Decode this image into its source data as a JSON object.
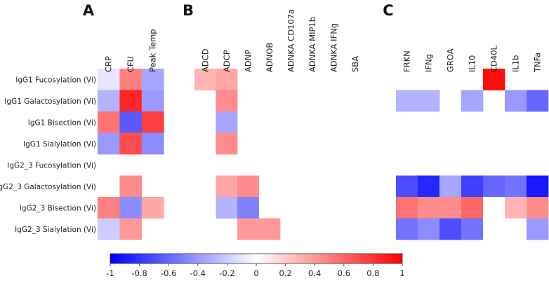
{
  "chart_data": {
    "type": "heatmap",
    "colormap": {
      "min": -1,
      "max": 1,
      "low_color": "#0000ff",
      "mid_color": "#ffffff",
      "high_color": "#ff0000"
    },
    "rows": [
      "IgG1 Fucosylation (Vi)",
      "IgG1 Galactosylation (Vi)",
      "IgG1 Bisection (Vi)",
      "IgG1 Sialylation (Vi)",
      "IgG2_3 Fucosylation (Vi)",
      "IgG2_3 Galactosylation (Vi)",
      "IgG2_3 Bisection (Vi)",
      "IgG2_3 Sialylation (Vi)"
    ],
    "panels": [
      {
        "label": "A",
        "columns": [
          "CRP",
          "CFU",
          "Peak Temp"
        ],
        "values": [
          [
            -0.1,
            0.5,
            -0.35
          ],
          [
            -0.3,
            0.85,
            -0.4
          ],
          [
            0.55,
            -0.65,
            0.75
          ],
          [
            -0.4,
            0.7,
            -0.45
          ],
          [
            null,
            null,
            null
          ],
          [
            null,
            0.45,
            null
          ],
          [
            0.5,
            -0.45,
            0.35
          ],
          [
            -0.2,
            0.4,
            null
          ]
        ]
      },
      {
        "label": "B",
        "columns": [
          "ADCD",
          "ADCP",
          "ADNP",
          "ADNOB",
          "ADNKA CD107a",
          "ADNKA MIP1b",
          "ADNKA IFNg",
          "SBA"
        ],
        "values": [
          [
            0.3,
            0.35,
            null,
            null,
            null,
            null,
            null,
            null
          ],
          [
            null,
            0.45,
            null,
            null,
            null,
            null,
            null,
            null
          ],
          [
            null,
            -0.35,
            null,
            null,
            null,
            null,
            null,
            null
          ],
          [
            null,
            0.45,
            null,
            null,
            null,
            null,
            null,
            null
          ],
          [
            null,
            null,
            null,
            null,
            null,
            null,
            null,
            null
          ],
          [
            null,
            0.35,
            0.45,
            null,
            null,
            null,
            null,
            null
          ],
          [
            null,
            -0.3,
            -0.5,
            null,
            null,
            null,
            null,
            null
          ],
          [
            null,
            null,
            0.4,
            0.4,
            null,
            null,
            null,
            null
          ]
        ]
      },
      {
        "label": "C",
        "columns": [
          "FRKN",
          "IFNg",
          "GROA",
          "IL10",
          "CD40L",
          "IL1b",
          "TNFa"
        ],
        "values": [
          [
            null,
            null,
            null,
            null,
            0.95,
            null,
            null
          ],
          [
            -0.3,
            -0.3,
            null,
            -0.35,
            null,
            -0.4,
            -0.6
          ],
          [
            null,
            null,
            null,
            null,
            null,
            null,
            null
          ],
          [
            null,
            null,
            null,
            null,
            null,
            null,
            null
          ],
          [
            null,
            null,
            null,
            null,
            null,
            null,
            null
          ],
          [
            -0.7,
            -0.85,
            -0.35,
            -0.75,
            -0.6,
            -0.55,
            -0.9
          ],
          [
            0.55,
            0.45,
            0.45,
            0.6,
            0.0,
            0.3,
            0.45
          ],
          [
            -0.55,
            -0.45,
            -0.7,
            -0.55,
            0.0,
            0.0,
            -0.4
          ]
        ]
      }
    ],
    "colorbar": {
      "ticks": [
        "-1",
        "-0.8",
        "-0.6",
        "-0.4",
        "-0.2",
        "0",
        "0.2",
        "0.4",
        "0.6",
        "0.8",
        "1"
      ],
      "tick_values": [
        -1,
        -0.8,
        -0.6,
        -0.4,
        -0.2,
        0,
        0.2,
        0.4,
        0.6,
        0.8,
        1
      ]
    }
  }
}
